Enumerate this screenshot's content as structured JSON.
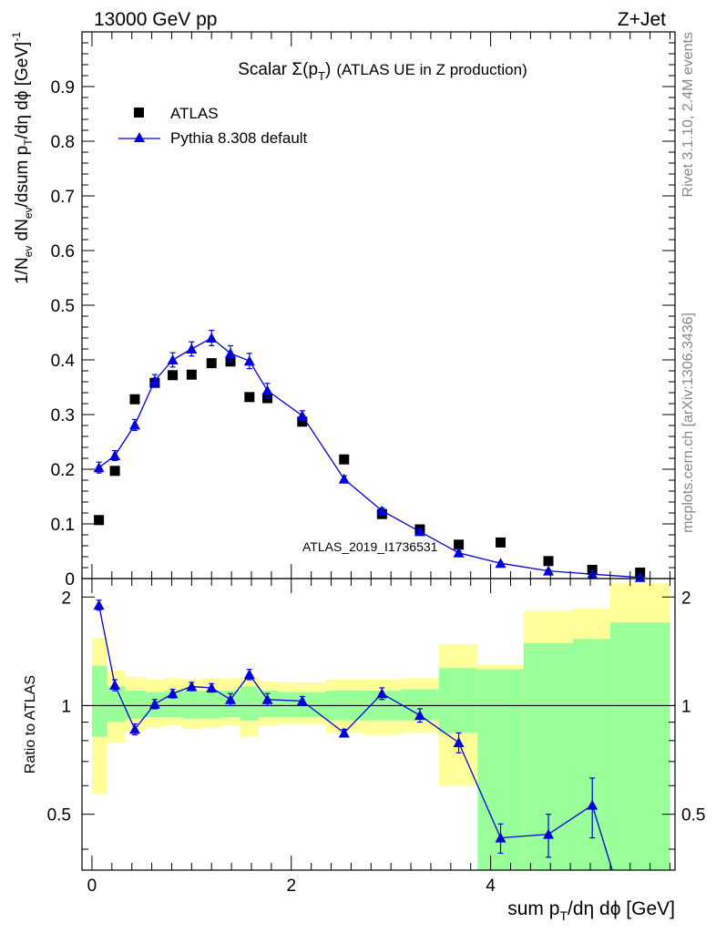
{
  "header": {
    "energy": "13000 GeV pp",
    "process": "Z+Jet"
  },
  "side_labels": {
    "rivet": "Rivet 3.1.10,  2.4M events",
    "mcplots": "mcplots.cern.ch [arXiv:1306.3436]"
  },
  "chart_data": [
    {
      "type": "scatter",
      "title": "Scalar Σ(p_T) (ATLAS UE in Z production)",
      "title_parts": {
        "main": "Scalar ",
        "sigma": "Σ(p",
        "sub": "T",
        "close": ")",
        "rest": "(ATLAS UE in Z production)"
      },
      "ylabel": "1/N_ev dN_ev/dsum p_T/dη dϕ [GeV]^-1",
      "ylabel_parts": {
        "a": "1/N",
        "a_sub": "ev",
        "b": " dN",
        "b_sub": "ev",
        "c": "/dsum p",
        "c_sub": "T",
        "d": "/dη dϕ  [GeV]",
        "d_sup": "-1"
      },
      "xlim": [
        -0.1,
        5.85
      ],
      "ylim": [
        0,
        1.0
      ],
      "yticks": [
        0,
        0.1,
        0.2,
        0.3,
        0.4,
        0.5,
        0.6,
        0.7,
        0.8,
        0.9
      ],
      "ytick_labels": [
        "0",
        "0.1",
        "0.2",
        "0.3",
        "0.4",
        "0.5",
        "0.6",
        "0.7",
        "0.8",
        "0.9"
      ],
      "watermark": "ATLAS_2019_I1736531",
      "legend": {
        "position": "top-left"
      },
      "series": [
        {
          "name": "ATLAS",
          "marker": "square",
          "color": "#000000",
          "x": [
            0.07,
            0.23,
            0.43,
            0.63,
            0.81,
            1.0,
            1.2,
            1.39,
            1.58,
            1.76,
            2.11,
            2.53,
            2.91,
            3.29,
            3.68,
            4.1,
            4.58,
            5.02,
            5.5
          ],
          "y": [
            0.107,
            0.197,
            0.328,
            0.358,
            0.372,
            0.373,
            0.394,
            0.397,
            0.332,
            0.33,
            0.287,
            0.218,
            0.118,
            0.09,
            0.062,
            0.066,
            0.032,
            0.016,
            0.011
          ]
        },
        {
          "name": "Pythia 8.308 default",
          "marker": "triangle",
          "color": "#0000dd",
          "x": [
            0.07,
            0.23,
            0.43,
            0.63,
            0.81,
            1.0,
            1.2,
            1.39,
            1.58,
            1.76,
            2.11,
            2.53,
            2.91,
            3.29,
            3.68,
            4.1,
            4.58,
            5.02,
            5.5
          ],
          "y": [
            0.203,
            0.225,
            0.281,
            0.362,
            0.4,
            0.42,
            0.44,
            0.412,
            0.398,
            0.344,
            0.298,
            0.182,
            0.124,
            0.086,
            0.047,
            0.028,
            0.014,
            0.008,
            0.002
          ],
          "yerr": [
            0.01,
            0.009,
            0.01,
            0.011,
            0.013,
            0.013,
            0.014,
            0.014,
            0.014,
            0.013,
            0.009,
            0.006,
            0.005,
            0.004,
            0.003,
            0.002,
            0.002,
            0.002,
            0.002
          ]
        }
      ]
    },
    {
      "type": "line",
      "title": "",
      "ylabel": "Ratio to ATLAS",
      "xlabel": "sum p_T/dη dϕ [GeV]",
      "xlabel_parts": {
        "a": "sum p",
        "sub": "T",
        "b": "/dη dϕ [GeV]"
      },
      "xlim": [
        -0.1,
        5.85
      ],
      "ylim": [
        0.35,
        2.25
      ],
      "xticks": [
        0,
        2,
        4
      ],
      "xtick_labels": [
        "0",
        "2",
        "4"
      ],
      "yticks": [
        0.5,
        1,
        2
      ],
      "ytick_labels": [
        "0.5",
        "1",
        "2"
      ],
      "bands": {
        "edges": [
          0,
          0.15,
          0.33,
          0.53,
          0.72,
          0.91,
          1.1,
          1.3,
          1.49,
          1.67,
          1.87,
          2.35,
          2.72,
          3.1,
          3.48,
          3.87,
          4.33,
          4.83,
          5.2,
          5.8
        ],
        "inner_color": "#99ff99",
        "outer_color": "#ffff99",
        "inner_lo": [
          0.82,
          0.9,
          0.92,
          0.93,
          0.93,
          0.92,
          0.92,
          0.93,
          0.91,
          0.93,
          0.93,
          0.91,
          0.91,
          0.91,
          0.84,
          0.35,
          0.35,
          0.35,
          0.35
        ],
        "inner_hi": [
          1.29,
          1.13,
          1.1,
          1.09,
          1.1,
          1.1,
          1.1,
          1.1,
          1.13,
          1.1,
          1.09,
          1.1,
          1.1,
          1.11,
          1.27,
          1.26,
          1.49,
          1.53,
          1.7
        ],
        "outer_lo": [
          0.57,
          0.79,
          0.85,
          0.87,
          0.88,
          0.86,
          0.87,
          0.88,
          0.82,
          0.88,
          0.89,
          0.84,
          0.83,
          0.84,
          0.6,
          0.81,
          0.69,
          0.63,
          0.35
        ],
        "outer_hi": [
          1.54,
          1.25,
          1.2,
          1.18,
          1.19,
          1.18,
          1.19,
          1.19,
          1.2,
          1.17,
          1.16,
          1.18,
          1.18,
          1.19,
          1.48,
          1.3,
          1.83,
          1.86,
          2.18
        ]
      },
      "series": [
        {
          "name": "Pythia 8.308 default",
          "color": "#0000dd",
          "x": [
            0.07,
            0.23,
            0.43,
            0.63,
            0.81,
            1.0,
            1.2,
            1.39,
            1.58,
            1.76,
            2.11,
            2.53,
            2.91,
            3.29,
            3.68,
            4.1,
            4.58,
            5.02
          ],
          "y": [
            1.9,
            1.14,
            0.86,
            1.01,
            1.08,
            1.13,
            1.12,
            1.04,
            1.22,
            1.04,
            1.03,
            0.84,
            1.08,
            0.94,
            0.79,
            0.43,
            0.44,
            0.53
          ],
          "yerr": [
            0.06,
            0.04,
            0.03,
            0.03,
            0.03,
            0.03,
            0.03,
            0.04,
            0.04,
            0.04,
            0.03,
            0.02,
            0.04,
            0.04,
            0.05,
            0.04,
            0.06,
            0.1
          ]
        }
      ]
    }
  ]
}
